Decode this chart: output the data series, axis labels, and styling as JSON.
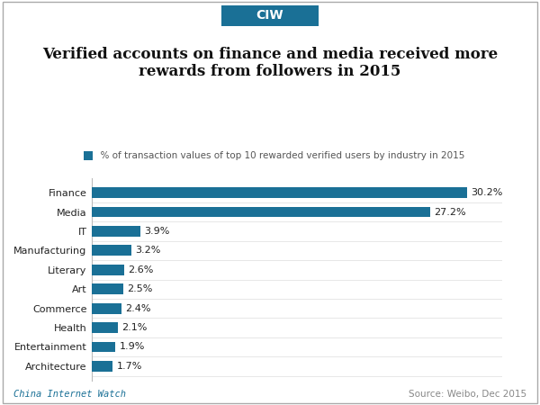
{
  "title": "Verified accounts on finance and media received more\nrewards from followers in 2015",
  "legend_label": "% of transaction values of top 10 rewarded verified users by industry in 2015",
  "categories": [
    "Architecture",
    "Entertainment",
    "Health",
    "Commerce",
    "Art",
    "Literary",
    "Manufacturing",
    "IT",
    "Media",
    "Finance"
  ],
  "values": [
    1.7,
    1.9,
    2.1,
    2.4,
    2.5,
    2.6,
    3.2,
    3.9,
    27.2,
    30.2
  ],
  "bar_color": "#1a7096",
  "background_color": "#ffffff",
  "text_color": "#222222",
  "footer_left": "China Internet Watch",
  "footer_right": "Source: Weibo, Dec 2015",
  "header_label": "CIW",
  "header_bg": "#1a7096",
  "header_text_color": "#ffffff",
  "border_color": "#aaaaaa",
  "xlim": [
    0,
    33
  ],
  "title_fontsize": 12,
  "label_fontsize": 8,
  "value_fontsize": 8,
  "legend_fontsize": 7.5,
  "footer_fontsize": 7.5
}
